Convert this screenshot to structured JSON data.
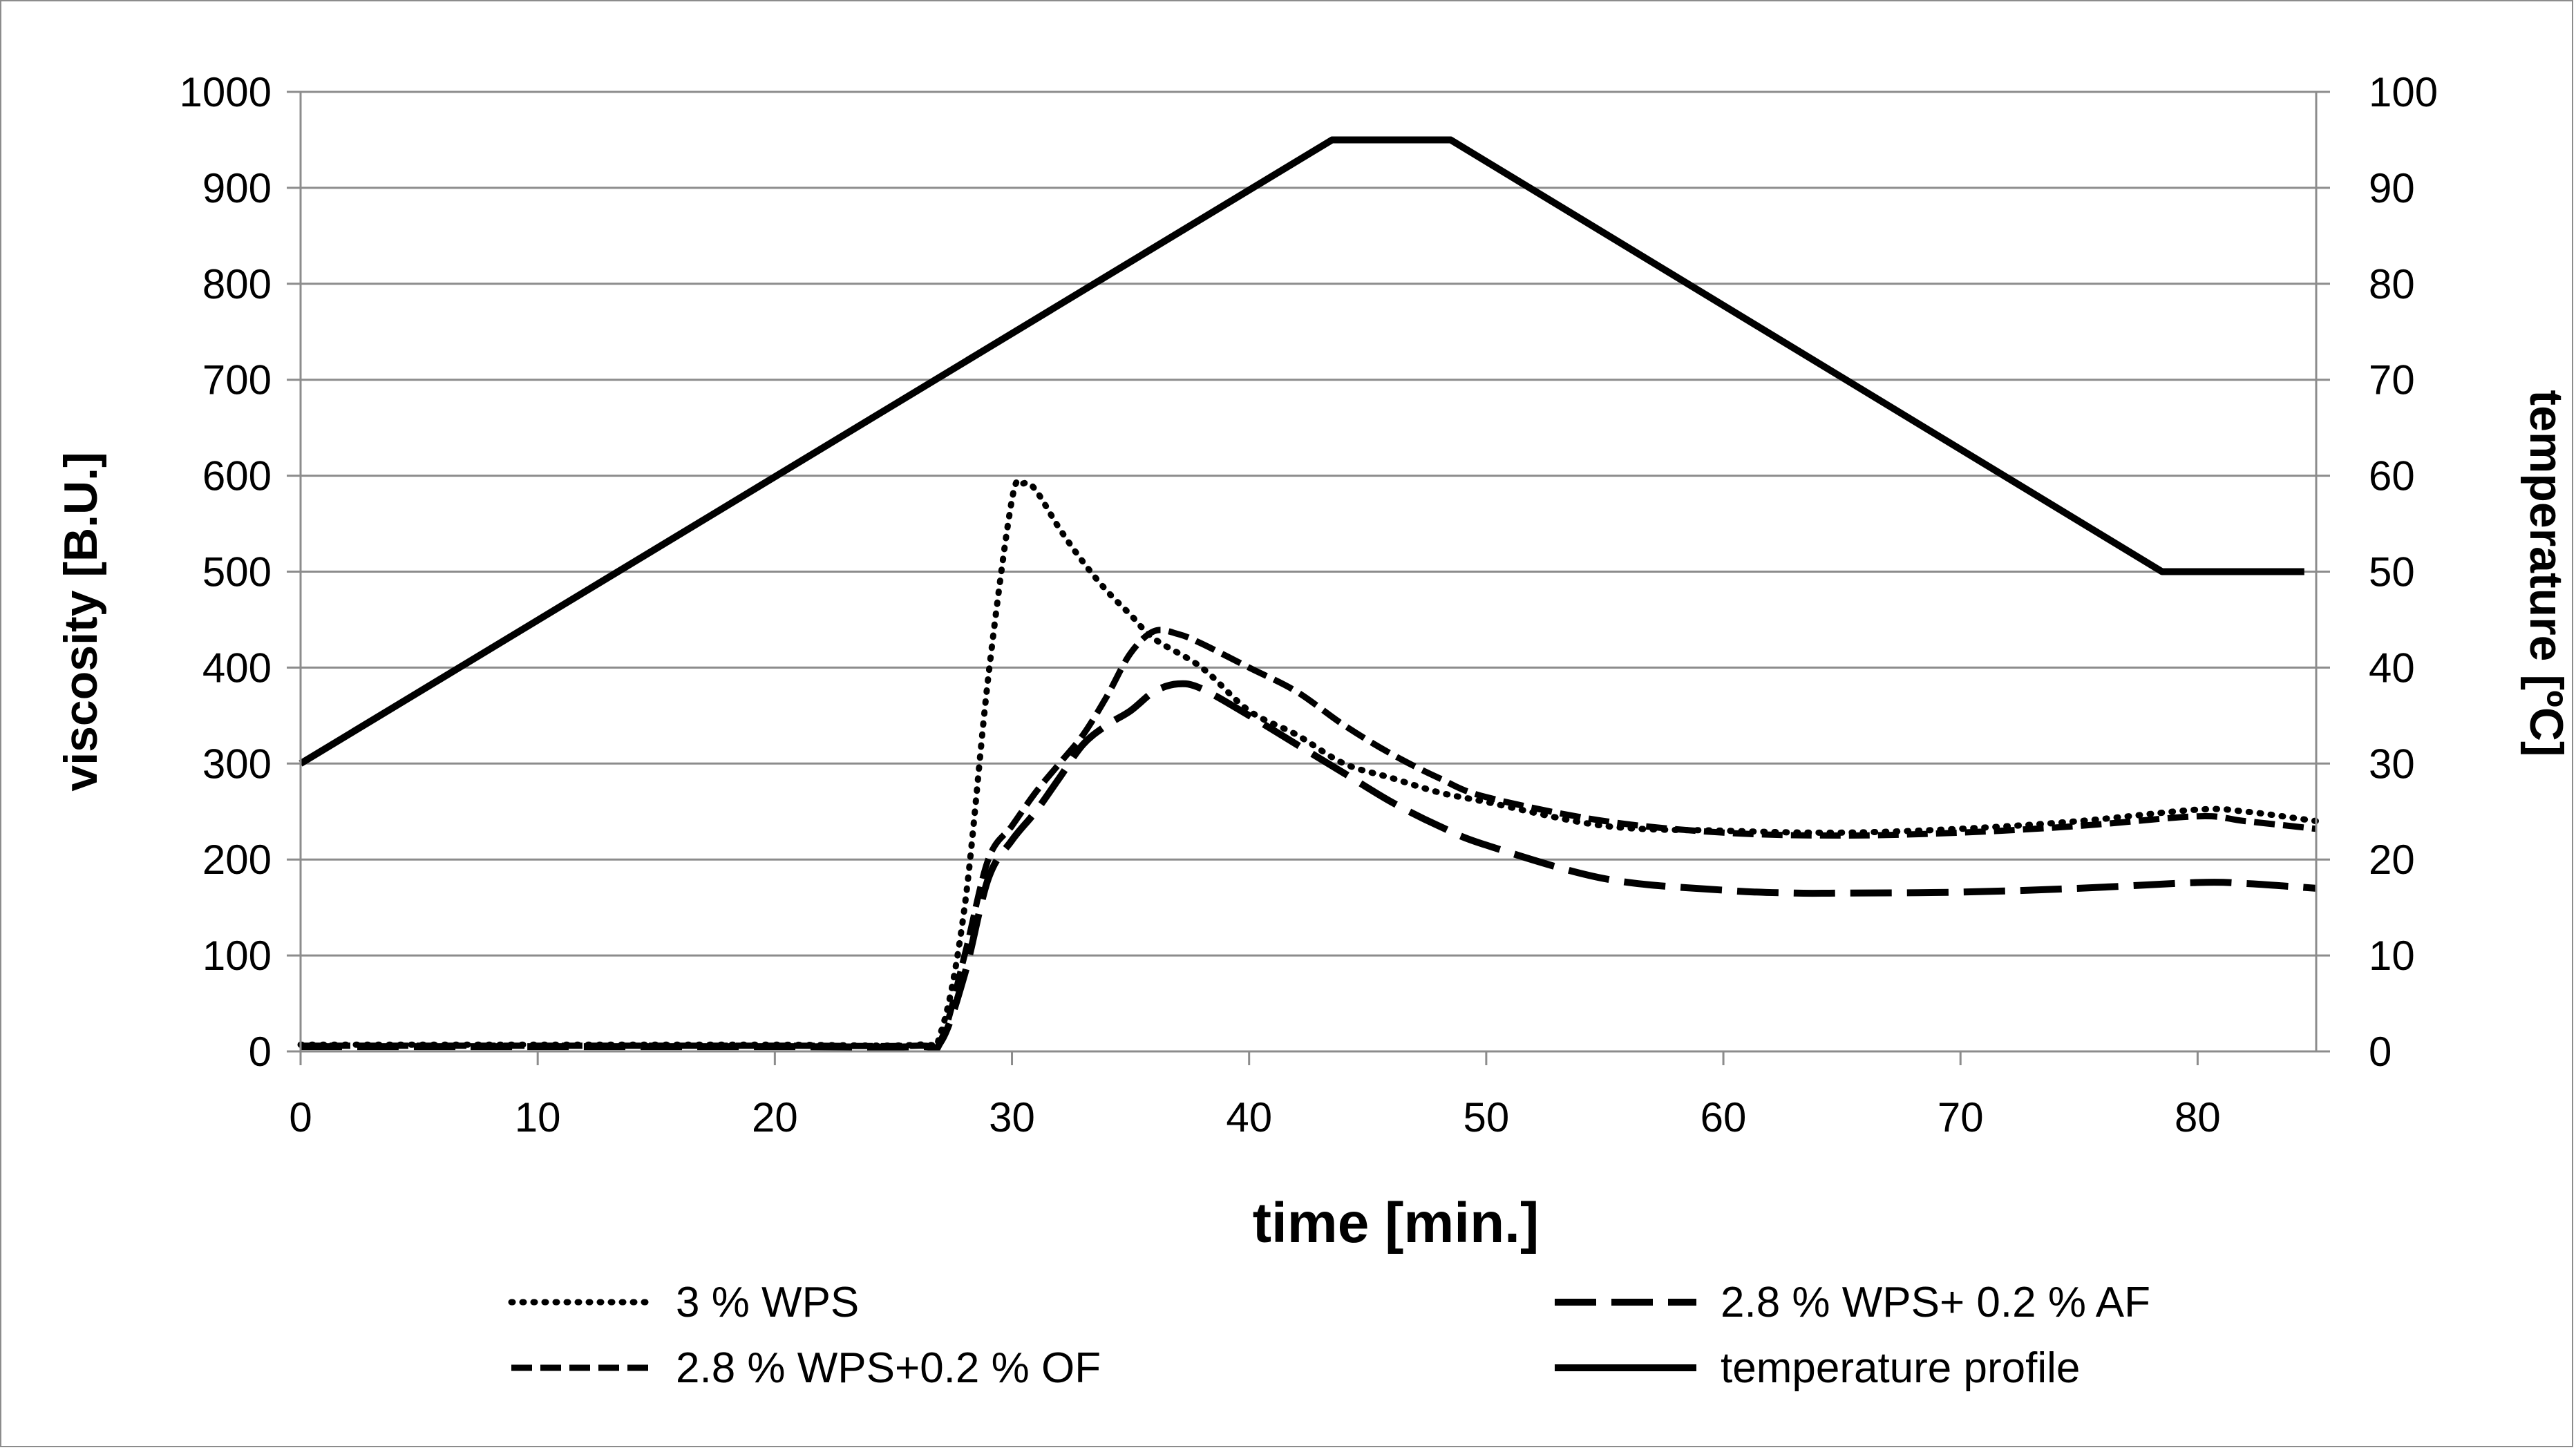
{
  "chart_data": {
    "type": "line",
    "xlabel": "time [min.]",
    "ylabel": "viscosity  [B.U.]",
    "y2label": "temperature [ºC]",
    "xlim": [
      0,
      85
    ],
    "ylim": [
      0,
      1000
    ],
    "y2lim": [
      0,
      100
    ],
    "grid": true,
    "legend_position": "bottom",
    "x_ticks": [
      "0",
      "10",
      "20",
      "30",
      "40",
      "50",
      "60",
      "70",
      "80"
    ],
    "y_ticks": [
      "0",
      "100",
      "200",
      "300",
      "400",
      "500",
      "600",
      "700",
      "800",
      "900",
      "1000"
    ],
    "y2_ticks": [
      "0",
      "10",
      "20",
      "30",
      "40",
      "50",
      "60",
      "70",
      "80",
      "90",
      "100"
    ],
    "series": [
      {
        "name": "3 % WPS",
        "axis": "left",
        "style": "dotted",
        "x": [
          0,
          10,
          20,
          26,
          27,
          28,
          29,
          30,
          30.5,
          31,
          32,
          33,
          34,
          35,
          36,
          38,
          40,
          42,
          44,
          46,
          48,
          50,
          55,
          60,
          65,
          70,
          75,
          80,
          82,
          85
        ],
        "y": [
          7,
          7,
          7,
          7,
          20,
          150,
          390,
          575,
          592,
          585,
          545,
          510,
          480,
          455,
          430,
          400,
          355,
          330,
          300,
          285,
          270,
          260,
          235,
          230,
          228,
          232,
          240,
          252,
          250,
          240
        ]
      },
      {
        "name": "2.8 % WPS+0.2 % OF",
        "axis": "left",
        "style": "dashed-short",
        "x": [
          0,
          10,
          20,
          26,
          27,
          28,
          29,
          30,
          31,
          32,
          33,
          34,
          35,
          36,
          37,
          38,
          40,
          42,
          44,
          46,
          48,
          50,
          55,
          60,
          65,
          70,
          75,
          80,
          82,
          85
        ],
        "y": [
          6,
          6,
          6,
          6,
          12,
          100,
          200,
          235,
          270,
          300,
          330,
          370,
          415,
          438,
          435,
          425,
          400,
          375,
          340,
          310,
          285,
          265,
          240,
          228,
          225,
          228,
          235,
          245,
          240,
          232
        ]
      },
      {
        "name": "2.8 % WPS+ 0.2 % AF",
        "axis": "left",
        "style": "dashed-long",
        "x": [
          0,
          10,
          20,
          26,
          27,
          28,
          29,
          30,
          31,
          32,
          33,
          34,
          35,
          36,
          37,
          38,
          40,
          42,
          44,
          46,
          48,
          50,
          55,
          60,
          63,
          65,
          70,
          75,
          80,
          82,
          85
        ],
        "y": [
          5,
          5,
          5,
          5,
          10,
          80,
          180,
          220,
          250,
          285,
          320,
          340,
          355,
          375,
          383,
          378,
          350,
          320,
          290,
          260,
          235,
          215,
          180,
          168,
          165,
          165,
          166,
          170,
          176,
          175,
          170
        ]
      },
      {
        "name": "temperature profile",
        "axis": "right",
        "style": "solid",
        "x": [
          0,
          43.5,
          48.5,
          78.5,
          84.5
        ],
        "y": [
          30,
          95,
          95,
          50,
          50
        ]
      }
    ]
  }
}
